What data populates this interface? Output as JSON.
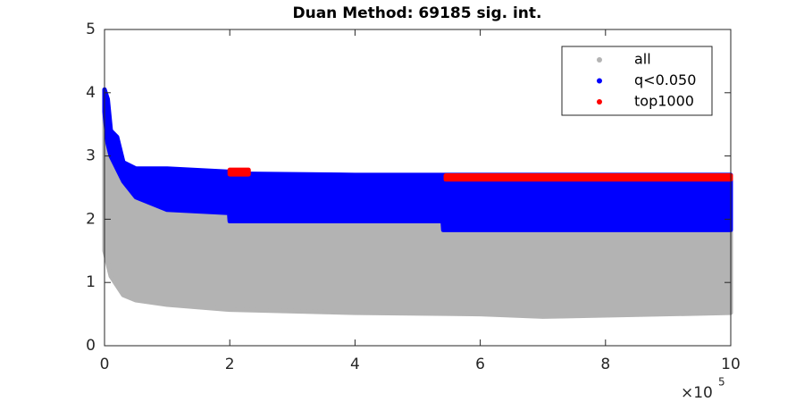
{
  "chart_data": {
    "type": "scatter",
    "title": "Duan Method: 69185 sig. int.",
    "xlim": [
      0,
      1000000
    ],
    "ylim": [
      0,
      5
    ],
    "xticks": [
      0,
      {
        "value": 200000,
        "label": "2"
      },
      {
        "value": 400000,
        "label": "4"
      },
      {
        "value": 600000,
        "label": "6"
      },
      {
        "value": 800000,
        "label": "8"
      },
      {
        "value": 1000000,
        "label": "10"
      }
    ],
    "yticks": [
      0,
      1,
      2,
      3,
      4,
      5
    ],
    "x_multiplier": "×10",
    "x_exponent": "5",
    "legend": "top-right",
    "series": [
      {
        "name": "all",
        "color": "#b3b3b3",
        "x": [
          0,
          5000,
          10000,
          20000,
          30000,
          50000,
          100000,
          200000,
          400000,
          600000,
          700000,
          800000,
          1000000
        ],
        "lower": [
          1.5,
          1.3,
          1.1,
          0.95,
          0.8,
          0.72,
          0.65,
          0.57,
          0.52,
          0.5,
          0.46,
          0.48,
          0.52
        ],
        "upper": [
          3.9,
          3.3,
          3.0,
          2.8,
          2.7,
          2.6,
          2.5,
          2.45,
          2.4,
          2.4,
          2.4,
          2.4,
          2.4
        ]
      },
      {
        "name": "q<0.050",
        "color": "#0000ff",
        "x": [
          0,
          5000,
          10000,
          20000,
          30000,
          50000,
          100000,
          199000,
          200000,
          400000,
          540000,
          541000,
          1000000
        ],
        "lower": [
          3.7,
          3.2,
          3.0,
          2.8,
          2.6,
          2.35,
          2.15,
          2.1,
          1.97,
          1.97,
          1.97,
          1.83,
          1.83
        ],
        "upper": [
          4.05,
          3.9,
          3.4,
          3.3,
          2.9,
          2.8,
          2.8,
          2.75,
          2.72,
          2.7,
          2.7,
          2.7,
          2.7
        ]
      },
      {
        "name": "top1000",
        "color": "#ff0000",
        "x": [
          200000,
          230000,
          null,
          545000,
          1000000
        ],
        "lower": [
          2.71,
          2.71,
          null,
          2.63,
          2.63
        ],
        "upper": [
          2.78,
          2.78,
          null,
          2.69,
          2.69
        ]
      }
    ]
  }
}
